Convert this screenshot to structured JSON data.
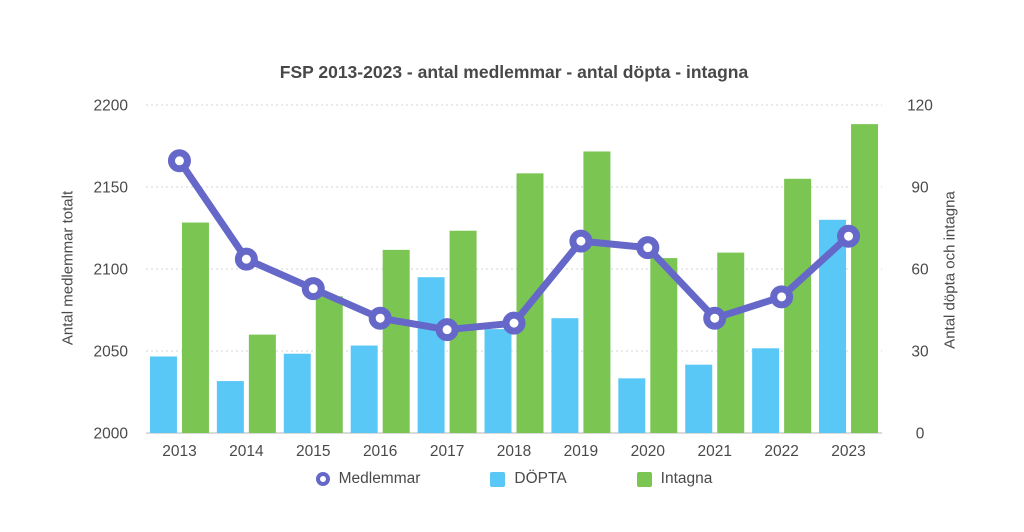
{
  "title": "FSP 2013-2023 - antal medlemmar - antal döpta - intagna",
  "colors": {
    "line": "#6568C8",
    "dopta_bar": "#5AC8F6",
    "intagna_bar": "#7BC553",
    "text": "#4a4a4a",
    "grid": "#d6d6d6",
    "baseline": "#c4c4c4",
    "marker_fill": "#ffffff"
  },
  "chart_data": {
    "type": "combo (bar + line, dual axis)",
    "title": "FSP 2013-2023 - antal medlemmar - antal döpta - intagna",
    "categories": [
      "2013",
      "2014",
      "2015",
      "2016",
      "2017",
      "2018",
      "2019",
      "2020",
      "2021",
      "2022",
      "2023"
    ],
    "series": [
      {
        "id": "medlemmar",
        "name": "Medlemmar",
        "type": "line",
        "axis": "left",
        "color": "#6568C8",
        "values": [
          2166,
          2106,
          2088,
          2070,
          2063,
          2067,
          2117,
          2113,
          2070,
          2083,
          2120
        ]
      },
      {
        "id": "dopta",
        "name": "DÖPTA",
        "type": "bar",
        "axis": "right",
        "color": "#5AC8F6",
        "values": [
          28,
          19,
          29,
          32,
          57,
          38,
          42,
          20,
          25,
          31,
          78
        ]
      },
      {
        "id": "intagna",
        "name": "Intagna",
        "type": "bar",
        "axis": "right",
        "color": "#7BC553",
        "values": [
          77,
          36,
          50,
          67,
          74,
          95,
          103,
          64,
          66,
          93,
          113
        ]
      }
    ],
    "left_axis": {
      "label": "Antal medlemmar totalt",
      "min": 2000,
      "max": 2200,
      "ticks": [
        2000,
        2050,
        2100,
        2150,
        2200
      ]
    },
    "right_axis": {
      "label": "Antal döpta och intagna",
      "min": 0,
      "max": 120,
      "ticks": [
        0,
        30,
        60,
        90,
        120
      ]
    },
    "grid": "dotted horizontal lines at each tick, solid baseline",
    "legend_position": "bottom"
  }
}
